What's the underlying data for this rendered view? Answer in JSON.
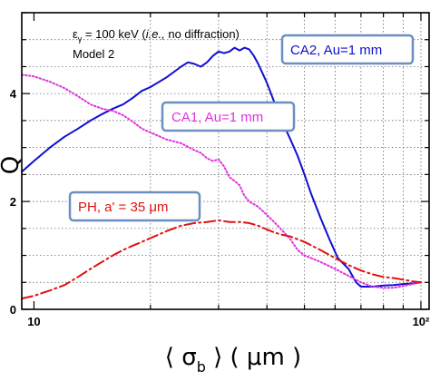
{
  "chart_data": {
    "type": "line",
    "xscale": "log",
    "xlim": [
      9.3,
      105
    ],
    "ylim": [
      0,
      5.5
    ],
    "grid": true,
    "xlabel": "⟨ σb ⟩ ( μm )",
    "ylabel": "Q",
    "xticks": [
      {
        "value": 10,
        "label": "10"
      },
      {
        "value": 100,
        "label": "10²"
      }
    ],
    "yticks": [
      {
        "value": 0,
        "label": "0"
      },
      {
        "value": 2,
        "label": "2"
      },
      {
        "value": 4,
        "label": "4"
      }
    ],
    "annotations": [
      "εγ = 100 keV (i.e., no diffraction)",
      "Model 2"
    ],
    "series": [
      {
        "name": "CA2, Au=1 mm",
        "color": "#1010d0",
        "style": "solid",
        "x": [
          9.3,
          10,
          11,
          12,
          13,
          14,
          15,
          16,
          17,
          18,
          19,
          20,
          22,
          24,
          25,
          26,
          27,
          28,
          29,
          30,
          31,
          32,
          33,
          34,
          35,
          36,
          37,
          38,
          40,
          42,
          44,
          46,
          48,
          50,
          52,
          55,
          58,
          61,
          65,
          68,
          70,
          72,
          75,
          80,
          85,
          90,
          95,
          100
        ],
        "values": [
          2.55,
          2.75,
          3.0,
          3.2,
          3.35,
          3.5,
          3.62,
          3.72,
          3.8,
          3.92,
          4.05,
          4.12,
          4.3,
          4.5,
          4.58,
          4.55,
          4.5,
          4.58,
          4.7,
          4.78,
          4.75,
          4.78,
          4.85,
          4.8,
          4.85,
          4.82,
          4.7,
          4.55,
          4.2,
          3.8,
          3.45,
          3.15,
          2.85,
          2.5,
          2.15,
          1.7,
          1.3,
          0.95,
          0.75,
          0.5,
          0.42,
          0.42,
          0.42,
          0.44,
          0.45,
          0.47,
          0.48,
          0.5
        ]
      },
      {
        "name": "CA1, Au=1 mm",
        "color": "#e030e0",
        "style": "dotted",
        "x": [
          9.3,
          10,
          11,
          12,
          13,
          14,
          15,
          16,
          17,
          18,
          19,
          20,
          22,
          24,
          26,
          27,
          28,
          29,
          30,
          31,
          32,
          33,
          34,
          35,
          36,
          38,
          40,
          42,
          44,
          46,
          48,
          50,
          55,
          60,
          65,
          70,
          75,
          80,
          85,
          90,
          95,
          100
        ],
        "values": [
          4.35,
          4.32,
          4.22,
          4.1,
          3.95,
          3.8,
          3.72,
          3.68,
          3.6,
          3.48,
          3.35,
          3.28,
          3.15,
          3.08,
          2.95,
          2.9,
          2.8,
          2.75,
          2.78,
          2.65,
          2.45,
          2.38,
          2.3,
          2.1,
          2.0,
          1.9,
          1.75,
          1.6,
          1.45,
          1.3,
          1.1,
          1.0,
          0.88,
          0.75,
          0.62,
          0.5,
          0.42,
          0.4,
          0.4,
          0.43,
          0.47,
          0.5
        ]
      },
      {
        "name": "PH, a' = 35 μm",
        "color": "#e01010",
        "style": "dashdot",
        "x": [
          9.3,
          10,
          11,
          12,
          13,
          14,
          15,
          16,
          17,
          18,
          19,
          20,
          22,
          24,
          26,
          28,
          30,
          32,
          34,
          36,
          38,
          40,
          42,
          44,
          46,
          48,
          50,
          55,
          60,
          65,
          70,
          75,
          80,
          85,
          90,
          95,
          100
        ],
        "values": [
          0.2,
          0.25,
          0.35,
          0.45,
          0.6,
          0.75,
          0.88,
          1.0,
          1.1,
          1.18,
          1.25,
          1.32,
          1.45,
          1.55,
          1.6,
          1.62,
          1.65,
          1.62,
          1.62,
          1.6,
          1.55,
          1.48,
          1.42,
          1.38,
          1.35,
          1.3,
          1.25,
          1.1,
          0.95,
          0.82,
          0.72,
          0.65,
          0.6,
          0.58,
          0.55,
          0.52,
          0.5
        ]
      }
    ],
    "labels": {
      "ca2": "CA2, Au=1 mm",
      "ca1": "CA1, Au=1 mm",
      "ph": "PH, a' = 35 μm"
    }
  }
}
